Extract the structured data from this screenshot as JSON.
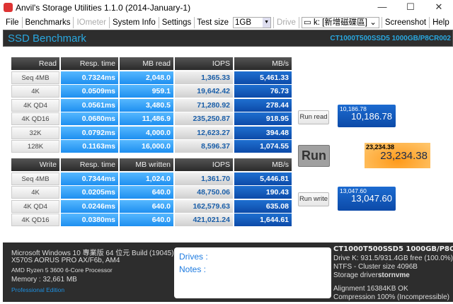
{
  "window": {
    "title": "Anvil's Storage Utilities 1.1.0 (2014-January-1)",
    "minimize": "—",
    "maximize": "☐",
    "close": "✕"
  },
  "menu": {
    "file": "File",
    "benchmarks": "Benchmarks",
    "iometer": "IOmeter",
    "system_info": "System Info",
    "settings": "Settings",
    "test_size_label": "Test size",
    "test_size_value": "1GB",
    "drive_label": "Drive",
    "drive_value": "k: [新增磁碟區]",
    "screenshot": "Screenshot",
    "help": "Help"
  },
  "header": {
    "title": "SSD Benchmark",
    "model": "CT1000T500SSD5 1000GB/P8CR002"
  },
  "read": {
    "headers": [
      "Read",
      "Resp. time",
      "MB read",
      "IOPS",
      "MB/s"
    ],
    "rows": [
      [
        "Seq 4MB",
        "0.7324ms",
        "2,048.0",
        "1,365.33",
        "5,461.33"
      ],
      [
        "4K",
        "0.0509ms",
        "959.1",
        "19,642.42",
        "76.73"
      ],
      [
        "4K QD4",
        "0.0561ms",
        "3,480.5",
        "71,280.92",
        "278.44"
      ],
      [
        "4K QD16",
        "0.0680ms",
        "11,486.9",
        "235,250.87",
        "918.95"
      ],
      [
        "32K",
        "0.0792ms",
        "4,000.0",
        "12,623.27",
        "394.48"
      ],
      [
        "128K",
        "0.1163ms",
        "16,000.0",
        "8,596.37",
        "1,074.55"
      ]
    ]
  },
  "write": {
    "headers": [
      "Write",
      "Resp. time",
      "MB written",
      "IOPS",
      "MB/s"
    ],
    "rows": [
      [
        "Seq 4MB",
        "0.7344ms",
        "1,024.0",
        "1,361.70",
        "5,446.81"
      ],
      [
        "4K",
        "0.0205ms",
        "640.0",
        "48,750.06",
        "190.43"
      ],
      [
        "4K QD4",
        "0.0246ms",
        "640.0",
        "162,579.63",
        "635.08"
      ],
      [
        "4K QD16",
        "0.0380ms",
        "640.0",
        "421,021.24",
        "1,644.61"
      ]
    ]
  },
  "scores": {
    "run_read": "Run read",
    "read_small": "10,186.78",
    "read_big": "10,186.78",
    "run": "Run",
    "total_small": "23,234.38",
    "total_big": "23,234.38",
    "run_write": "Run write",
    "write_small": "13,047.60",
    "write_big": "13,047.60"
  },
  "system": {
    "os": "Microsoft Windows 10 專業版 64 位元 Build (19045)",
    "board": "X570S AORUS PRO AX/F6b, AM4",
    "cpu": "AMD Ryzen 5 3600 6-Core Processor",
    "memory": "Memory : 32,661 MB",
    "edition": "Professional Edition"
  },
  "notes": {
    "drives": "Drives :",
    "notes": "Notes :"
  },
  "drive_info": {
    "model": "CT1000T500SSD5 1000GB/P8CR002",
    "free": "Drive K: 931.5/931.4GB free (100.0%)",
    "fs": "NTFS - Cluster size 4096B",
    "driver_label": "Storage driver",
    "driver": "stornvme",
    "alignment": "Alignment 16384KB OK",
    "compression": "Compression 100% (Incompressible)"
  },
  "colors": {
    "accent": "#29a8e0",
    "total_score": "#ffb347"
  }
}
